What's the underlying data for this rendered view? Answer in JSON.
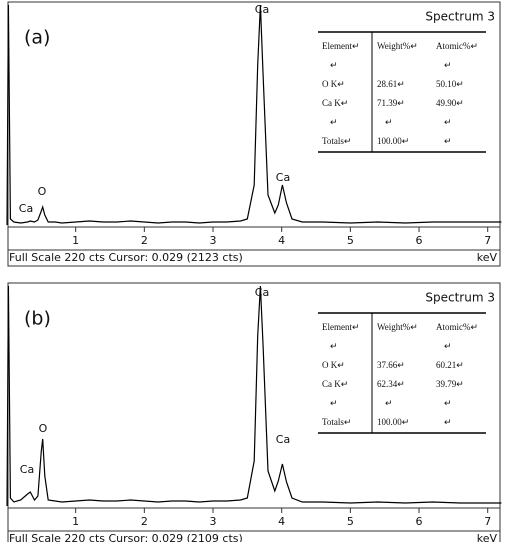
{
  "chart_data": [
    {
      "type": "line",
      "panel_label": "(a)",
      "title": "Spectrum 3",
      "x_label": "keV",
      "footer": "Full Scale 220 cts Cursor: 0.029 (2123 cts)",
      "annotations": [
        "Ca",
        "O",
        "Ca",
        "Ca"
      ],
      "xlim": [
        0,
        7.15
      ],
      "xticks": [
        1,
        2,
        3,
        4,
        5,
        6,
        7
      ],
      "ylim": [
        0,
        220
      ],
      "color": "#000000",
      "x": [
        0,
        0.02,
        0.05,
        0.1,
        0.2,
        0.3,
        0.34,
        0.4,
        0.45,
        0.5,
        0.52,
        0.55,
        0.6,
        0.7,
        0.8,
        1.0,
        1.2,
        1.4,
        1.6,
        1.8,
        2.0,
        2.2,
        2.4,
        2.6,
        2.8,
        3.0,
        3.2,
        3.4,
        3.5,
        3.6,
        3.65,
        3.69,
        3.73,
        3.8,
        3.9,
        3.95,
        4.01,
        4.07,
        4.15,
        4.3,
        4.6,
        5.0,
        5.4,
        5.8,
        6.2,
        6.6,
        7.0,
        7.2
      ],
      "values": [
        0,
        220,
        6,
        3,
        2,
        3,
        4,
        3,
        5,
        14,
        18,
        10,
        3,
        3,
        2,
        3,
        4,
        3,
        3,
        4,
        3,
        2,
        3,
        3,
        2,
        3,
        3,
        4,
        6,
        40,
        160,
        220,
        150,
        30,
        12,
        20,
        40,
        22,
        6,
        3,
        3,
        2,
        3,
        2,
        3,
        3,
        3,
        3
      ],
      "table": {
        "header": [
          "Element↵",
          "Weight%↵",
          "Atomic%↵"
        ],
        "rows": [
          [
            "↵",
            null,
            "↵"
          ],
          [
            "O K↵",
            "28.61↵",
            "50.10↵"
          ],
          [
            "Ca K↵",
            "71.39↵",
            "49.90↵"
          ],
          [
            "↵",
            "↵",
            "↵"
          ],
          [
            "Totals↵",
            "100.00↵",
            "↵"
          ]
        ]
      }
    },
    {
      "type": "line",
      "panel_label": "(b)",
      "title": "Spectrum 3",
      "x_label": "keV",
      "footer": "Full Scale 220 cts Cursor: 0.029 (2109 cts)",
      "annotations": [
        "Ca",
        "O",
        "Ca",
        "Ca"
      ],
      "xlim": [
        0,
        7.15
      ],
      "xticks": [
        1,
        2,
        3,
        4,
        5,
        6,
        7
      ],
      "ylim": [
        0,
        220
      ],
      "color": "#000000",
      "x": [
        0,
        0.02,
        0.05,
        0.1,
        0.2,
        0.3,
        0.34,
        0.4,
        0.45,
        0.5,
        0.52,
        0.55,
        0.6,
        0.7,
        0.8,
        1.0,
        1.2,
        1.4,
        1.6,
        1.8,
        2.0,
        2.2,
        2.4,
        2.6,
        2.8,
        3.0,
        3.2,
        3.4,
        3.5,
        3.6,
        3.65,
        3.69,
        3.73,
        3.8,
        3.9,
        3.95,
        4.01,
        4.07,
        4.15,
        4.3,
        4.6,
        5.0,
        5.4,
        5.8,
        6.2,
        6.6,
        7.0,
        7.2
      ],
      "values": [
        0,
        220,
        8,
        4,
        6,
        12,
        14,
        6,
        10,
        55,
        67,
        30,
        6,
        5,
        4,
        5,
        6,
        5,
        5,
        6,
        5,
        4,
        5,
        5,
        4,
        5,
        5,
        6,
        8,
        45,
        170,
        220,
        160,
        35,
        15,
        25,
        42,
        24,
        8,
        4,
        4,
        3,
        4,
        3,
        4,
        3,
        3,
        3
      ],
      "table": {
        "header": [
          "Element↵",
          "Weight%↵",
          "Atomic%↵"
        ],
        "rows": [
          [
            "↵",
            null,
            "↵"
          ],
          [
            "O K↵",
            "37.66↵",
            "60.21↵"
          ],
          [
            "Ca K↵",
            "62.34↵",
            "39.79↵"
          ],
          [
            "↵",
            "↵",
            "↵"
          ],
          [
            "Totals↵",
            "100.00↵",
            "↵"
          ]
        ]
      }
    }
  ]
}
